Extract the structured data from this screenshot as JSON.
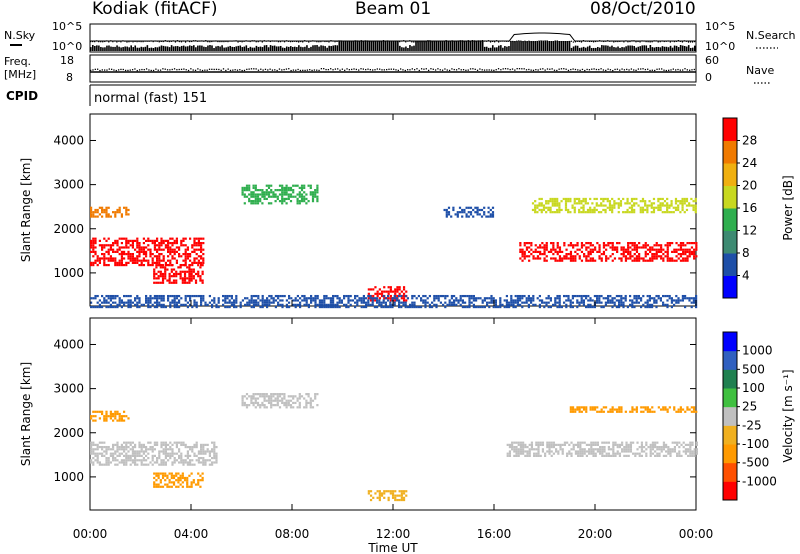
{
  "header": {
    "station": "Kodiak (fitACF)",
    "beam": "Beam 01",
    "date": "08/Oct/2010"
  },
  "top_strips": {
    "nsky_label": "N.Sky",
    "nsearch_label": "N.Search",
    "noise_ticks": [
      "10^5",
      "10^0"
    ],
    "freq_label": "Freq.",
    "freq_unit": "[MHz]",
    "freq_ticks": [
      "18",
      "8"
    ],
    "nave_label": "Nave",
    "nave_ticks": [
      "60",
      "0"
    ],
    "cpid_label": "CPID",
    "cpid_value": "normal (fast) 151"
  },
  "chart_data": [
    {
      "type": "heatmap",
      "name": "power",
      "title": "",
      "ylabel": "Slant Range [km]",
      "ylim": [
        250,
        4600
      ],
      "yticks": [
        "4000",
        "3000",
        "2000",
        "1000"
      ],
      "ytick_values": [
        4000,
        3000,
        2000,
        1000
      ],
      "colorbar": {
        "label": "Power [dB]",
        "ticks": [
          "28",
          "24",
          "20",
          "16",
          "12",
          "8",
          "4"
        ],
        "colors": [
          "#0000ff",
          "#1e4fa8",
          "#3d8a72",
          "#2fae4e",
          "#c8d820",
          "#f0b010",
          "#f07a00",
          "#ff0000"
        ]
      },
      "regions": [
        {
          "t": [
            0.0,
            4.5
          ],
          "range": [
            1200,
            1800
          ],
          "level": 7
        },
        {
          "t": [
            0.0,
            1.5
          ],
          "range": [
            2300,
            2500
          ],
          "level": 6
        },
        {
          "t": [
            2.5,
            4.5
          ],
          "range": [
            800,
            1200
          ],
          "level": 7
        },
        {
          "t": [
            6.0,
            9.0
          ],
          "range": [
            2600,
            3000
          ],
          "level": 3
        },
        {
          "t": [
            11.0,
            12.5
          ],
          "range": [
            400,
            700
          ],
          "level": 7
        },
        {
          "t": [
            14.0,
            16.0
          ],
          "range": [
            2300,
            2500
          ],
          "level": 1
        },
        {
          "t": [
            17.0,
            24.0
          ],
          "range": [
            1300,
            1700
          ],
          "level": 7
        },
        {
          "t": [
            17.5,
            24.0
          ],
          "range": [
            2400,
            2700
          ],
          "level": 4
        },
        {
          "t": [
            0.0,
            24.0
          ],
          "range": [
            250,
            500
          ],
          "level": 1
        }
      ]
    },
    {
      "type": "heatmap",
      "name": "velocity",
      "title": "",
      "ylabel": "Slant Range [km]",
      "ylim": [
        250,
        4600
      ],
      "yticks": [
        "4000",
        "3000",
        "2000",
        "1000"
      ],
      "ytick_values": [
        4000,
        3000,
        2000,
        1000
      ],
      "colorbar": {
        "label": "Velocity [m s⁻¹]",
        "ticks": [
          "1000",
          "500",
          "100",
          "25",
          "-25",
          "-100",
          "-500",
          "-1000"
        ],
        "colors": [
          "#ff0000",
          "#ff5000",
          "#ff9a00",
          "#f0b020",
          "#c0c0c0",
          "#40c040",
          "#208050",
          "#3060c0",
          "#0000ff"
        ]
      },
      "regions": [
        {
          "t": [
            0.0,
            5.0
          ],
          "range": [
            1300,
            1800
          ],
          "velocity": 0
        },
        {
          "t": [
            0.0,
            1.5
          ],
          "range": [
            2300,
            2500
          ],
          "velocity": -200
        },
        {
          "t": [
            2.5,
            4.5
          ],
          "range": [
            800,
            1100
          ],
          "velocity": -200
        },
        {
          "t": [
            6.0,
            9.0
          ],
          "range": [
            2600,
            2900
          ],
          "velocity": 0
        },
        {
          "t": [
            11.0,
            12.5
          ],
          "range": [
            500,
            700
          ],
          "velocity": -50
        },
        {
          "t": [
            16.5,
            24.0
          ],
          "range": [
            1500,
            1800
          ],
          "velocity": 0
        },
        {
          "t": [
            19.0,
            24.0
          ],
          "range": [
            2500,
            2600
          ],
          "velocity": -200
        }
      ]
    }
  ],
  "x_axis": {
    "label": "Time UT",
    "xlim": [
      0,
      24
    ],
    "ticks": [
      "00:00",
      "04:00",
      "08:00",
      "12:00",
      "16:00",
      "20:00",
      "00:00"
    ],
    "tick_values": [
      0,
      4,
      8,
      12,
      16,
      20,
      24
    ]
  },
  "colors": {
    "axis": "#000000",
    "grey_scatter": "#b8b8b8"
  }
}
